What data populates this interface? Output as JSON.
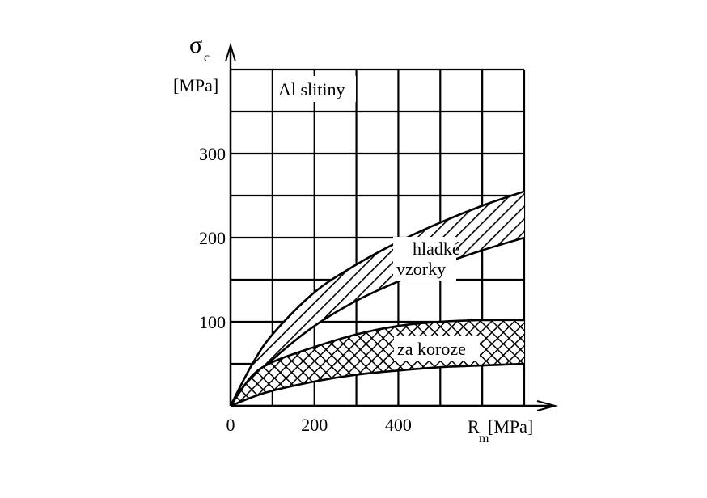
{
  "chart_data": {
    "type": "area",
    "title": "Al slitiny",
    "ylabel": {
      "symbol": "σ",
      "subscript": "c",
      "unit": "[MPa]"
    },
    "xlabel": {
      "symbol": "R",
      "subscript": "m",
      "unit": "[MPa]"
    },
    "xlim": [
      0,
      700
    ],
    "ylim": [
      0,
      400
    ],
    "x_ticks": [
      "0",
      "200",
      "400"
    ],
    "y_ticks": [
      "100",
      "200",
      "300"
    ],
    "grid": true,
    "series": [
      {
        "name": "hladké vzorky",
        "hatch": "diagonal",
        "upper": {
          "x": [
            0,
            50,
            100,
            200,
            300,
            400,
            500,
            600,
            700
          ],
          "y": [
            0,
            48,
            85,
            135,
            168,
            195,
            218,
            238,
            255
          ]
        },
        "lower": {
          "x": [
            0,
            50,
            100,
            200,
            300,
            400,
            500,
            600,
            700
          ],
          "y": [
            0,
            28,
            55,
            95,
            125,
            148,
            168,
            185,
            200
          ]
        }
      },
      {
        "name": "za koroze",
        "hatch": "cross",
        "upper": {
          "x": [
            0,
            50,
            100,
            200,
            300,
            400,
            500,
            600,
            700
          ],
          "y": [
            0,
            35,
            52,
            70,
            85,
            95,
            100,
            102,
            102
          ]
        },
        "lower": {
          "x": [
            0,
            50,
            100,
            200,
            300,
            400,
            500,
            600,
            700
          ],
          "y": [
            0,
            10,
            18,
            29,
            37,
            42,
            46,
            48,
            50
          ]
        }
      }
    ],
    "series_labels": [
      {
        "lines": [
          "hladké",
          "vzorky"
        ]
      },
      {
        "lines": [
          "za koroze"
        ]
      }
    ]
  }
}
